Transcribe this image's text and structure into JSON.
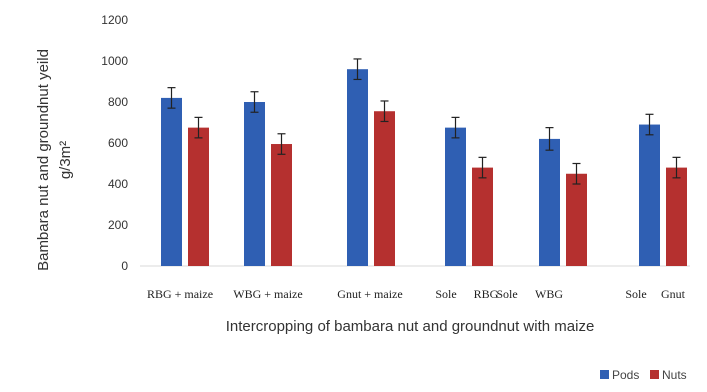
{
  "chart_data": {
    "type": "bar",
    "categories": [
      "RBG + maize",
      "WBG + maize",
      "Gnut + maize",
      "Sole RBG",
      "Sole WBG",
      "Sole Gnut"
    ],
    "category_labels": [
      "RBG + maize",
      "WBG + maize",
      "Gnut + maize",
      "Sole",
      "RBG",
      "Sole",
      "WBG",
      "Sole",
      "Gnut"
    ],
    "series": [
      {
        "name": "Pods",
        "color": "#2f5fb3",
        "values": [
          820,
          800,
          960,
          675,
          620,
          690
        ],
        "errors": [
          50,
          50,
          50,
          50,
          55,
          50
        ]
      },
      {
        "name": "Nuts",
        "color": "#b5302f",
        "values": [
          675,
          595,
          755,
          480,
          450,
          480
        ],
        "errors": [
          50,
          50,
          50,
          50,
          50,
          50
        ]
      }
    ],
    "ylabel_line1": "Bambara nut and groundnut yeild",
    "ylabel_line2": "g/3m²",
    "xlabel": "Intercropping of bambara nut  and  groundnut with maize",
    "ylim": [
      0,
      1200
    ],
    "yticks": [
      0,
      200,
      400,
      600,
      800,
      1000,
      1200
    ],
    "grid": false,
    "legend_position": "bottom-right"
  }
}
